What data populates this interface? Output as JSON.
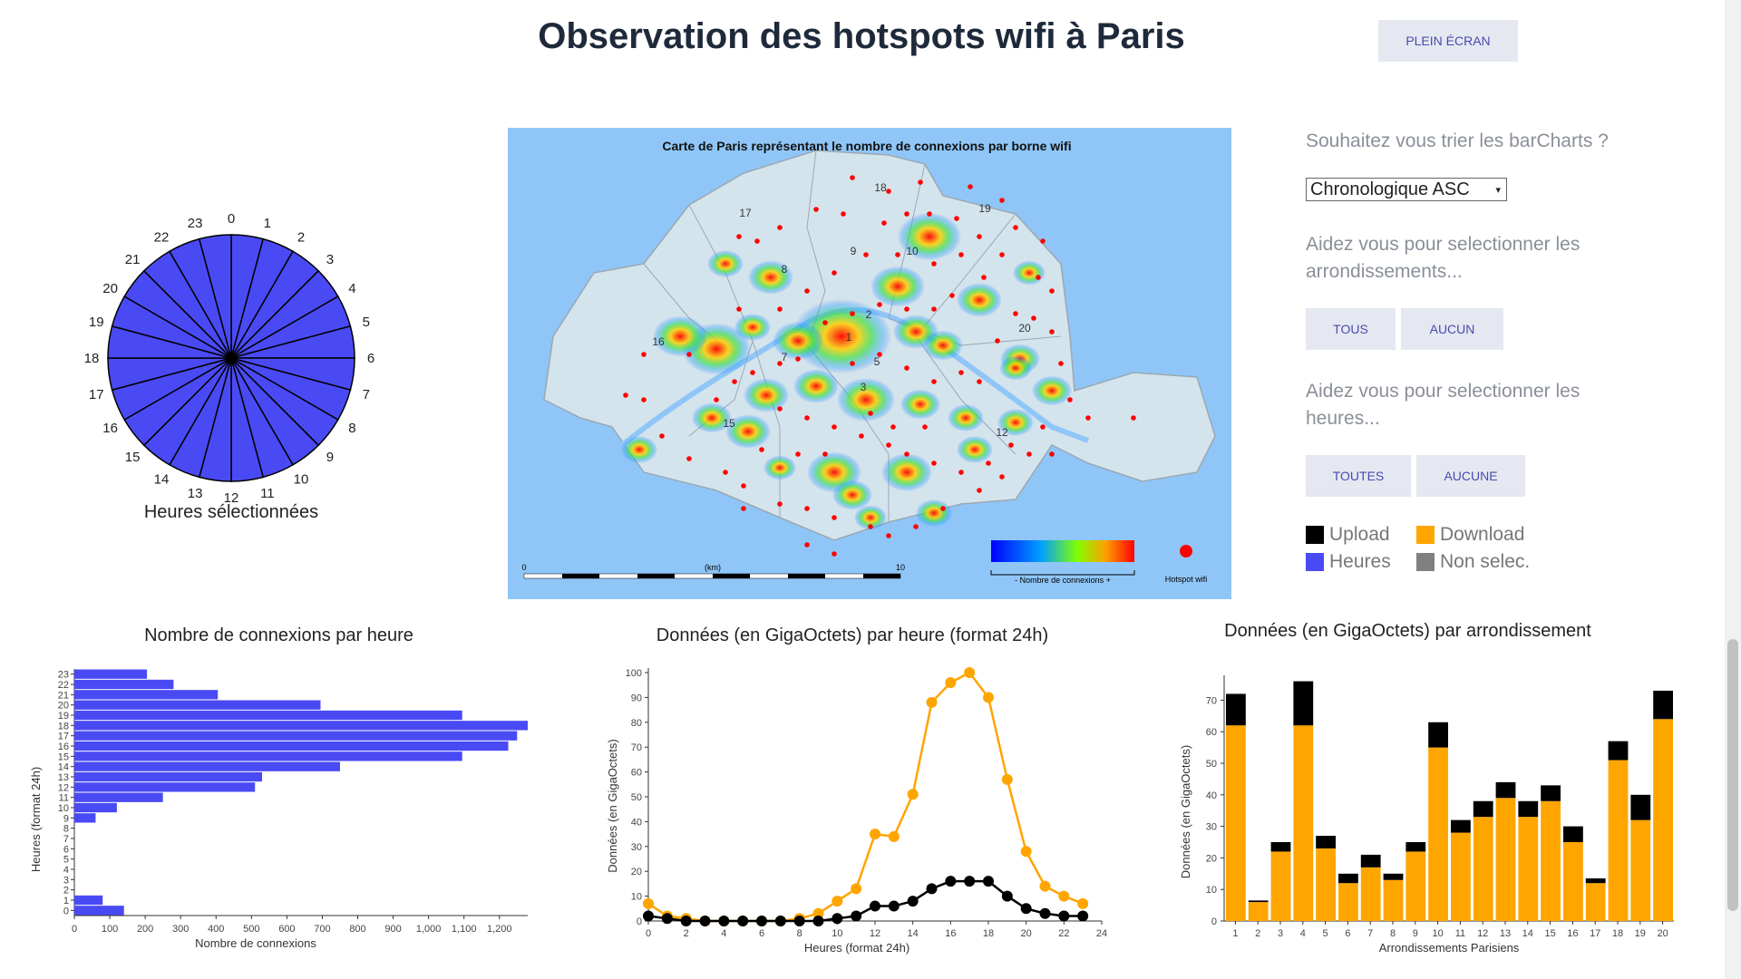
{
  "header": {
    "title": "Observation des hotspots wifi à Paris",
    "fullscreen_label": "PLEIN ÉCRAN"
  },
  "clock": {
    "caption": "Heures sélectionnées",
    "hours": [
      "0",
      "1",
      "2",
      "3",
      "4",
      "5",
      "6",
      "7",
      "8",
      "9",
      "10",
      "11",
      "12",
      "13",
      "14",
      "15",
      "16",
      "17",
      "18",
      "19",
      "20",
      "21",
      "22",
      "23"
    ],
    "fill": "#4a4af5"
  },
  "map": {
    "title": "Carte de Paris représentant le nombre de connexions par borne wifi",
    "scale_start": "0",
    "scale_unit": "(km)",
    "scale_end": "10",
    "gradient_caption": "- Nombre de connexions +",
    "hotspot_label": "Hotspot wifi",
    "arr_labels": [
      "18",
      "17",
      "19",
      "9",
      "10",
      "8",
      "16",
      "1",
      "2",
      "3",
      "20",
      "7",
      "5",
      "15",
      "12"
    ]
  },
  "controls": {
    "sort_question": "Souhaitez vous trier les barCharts ?",
    "sort_selected": "Chronologique ASC",
    "arr_help": "Aidez vous pour selectionner les arrondissements...",
    "btn_all": "TOUS",
    "btn_none": "AUCUN",
    "hours_help": "Aidez vous pour selectionner les heures...",
    "btn_all_hours": "TOUTES",
    "btn_no_hours": "AUCUNE"
  },
  "legend": {
    "upload": "Upload",
    "download": "Download",
    "heures": "Heures",
    "non_selec": "Non selec.",
    "colors": {
      "upload": "#000000",
      "download": "#ffa500",
      "heures": "#4a4af5",
      "non_selec": "#808080"
    }
  },
  "chart_data": [
    {
      "type": "bar",
      "orientation": "horizontal",
      "title": "Nombre de connexions par heure",
      "xlabel": "Nombre de connexions",
      "ylabel": "Heures (format 24h)",
      "categories": [
        "0",
        "1",
        "2",
        "3",
        "4",
        "5",
        "6",
        "7",
        "8",
        "9",
        "10",
        "11",
        "12",
        "13",
        "14",
        "15",
        "16",
        "17",
        "18",
        "19",
        "20",
        "21",
        "22",
        "23"
      ],
      "values": [
        140,
        80,
        0,
        0,
        0,
        0,
        0,
        0,
        0,
        60,
        120,
        250,
        510,
        530,
        750,
        1095,
        1225,
        1250,
        1280,
        1095,
        695,
        405,
        280,
        205
      ],
      "xlim": [
        0,
        1280
      ],
      "xticks": [
        "0",
        "100",
        "200",
        "300",
        "400",
        "500",
        "600",
        "700",
        "800",
        "900",
        "1,000",
        "1,100",
        "1,200"
      ],
      "color": "#4a4af5"
    },
    {
      "type": "line",
      "title": "Données (en GigaOctets) par heure (format 24h)",
      "xlabel": "Heures (format 24h)",
      "ylabel": "Données (en GigaOctets)",
      "x": [
        0,
        1,
        2,
        3,
        4,
        5,
        6,
        7,
        8,
        9,
        10,
        11,
        12,
        13,
        14,
        15,
        16,
        17,
        18,
        19,
        20,
        21,
        22,
        23
      ],
      "series": [
        {
          "name": "Download",
          "color": "#ffa500",
          "values": [
            7,
            2,
            1,
            0,
            0,
            0,
            0,
            0,
            1,
            3,
            8,
            13,
            35,
            34,
            51,
            88,
            96,
            100,
            90,
            57,
            28,
            14,
            10,
            7
          ]
        },
        {
          "name": "Upload",
          "color": "#000000",
          "values": [
            2,
            1,
            0,
            0,
            0,
            0,
            0,
            0,
            0,
            0,
            1,
            2,
            6,
            6,
            8,
            13,
            16,
            16,
            16,
            10,
            5,
            3,
            2,
            2
          ]
        }
      ],
      "xlim": [
        0,
        24
      ],
      "ylim": [
        0,
        100
      ],
      "xticks": [
        "0",
        "2",
        "4",
        "6",
        "8",
        "10",
        "12",
        "14",
        "16",
        "18",
        "20",
        "22",
        "24"
      ],
      "yticks": [
        "0",
        "10",
        "20",
        "30",
        "40",
        "50",
        "60",
        "70",
        "80",
        "90",
        "100"
      ]
    },
    {
      "type": "bar",
      "stacked": true,
      "title": "Données (en GigaOctets) par arrondissement",
      "xlabel": "Arrondissements Parisiens",
      "ylabel": "Données (en GigaOctets)",
      "categories": [
        "1",
        "2",
        "3",
        "4",
        "5",
        "6",
        "7",
        "8",
        "9",
        "10",
        "11",
        "12",
        "13",
        "14",
        "15",
        "16",
        "17",
        "18",
        "19",
        "20"
      ],
      "series": [
        {
          "name": "Download",
          "color": "#ffa500",
          "values": [
            62,
            6,
            22,
            62,
            23,
            12,
            17,
            13,
            22,
            55,
            28,
            33,
            39,
            33,
            38,
            25,
            12,
            51,
            32,
            64
          ]
        },
        {
          "name": "Upload",
          "color": "#000000",
          "values": [
            10,
            0.5,
            3,
            14,
            4,
            3,
            4,
            2,
            3,
            8,
            4,
            5,
            5,
            5,
            5,
            5,
            1.5,
            6,
            8,
            9
          ]
        }
      ],
      "ylim": [
        0,
        75
      ],
      "yticks": [
        "0",
        "10",
        "20",
        "30",
        "40",
        "50",
        "60",
        "70"
      ]
    }
  ]
}
